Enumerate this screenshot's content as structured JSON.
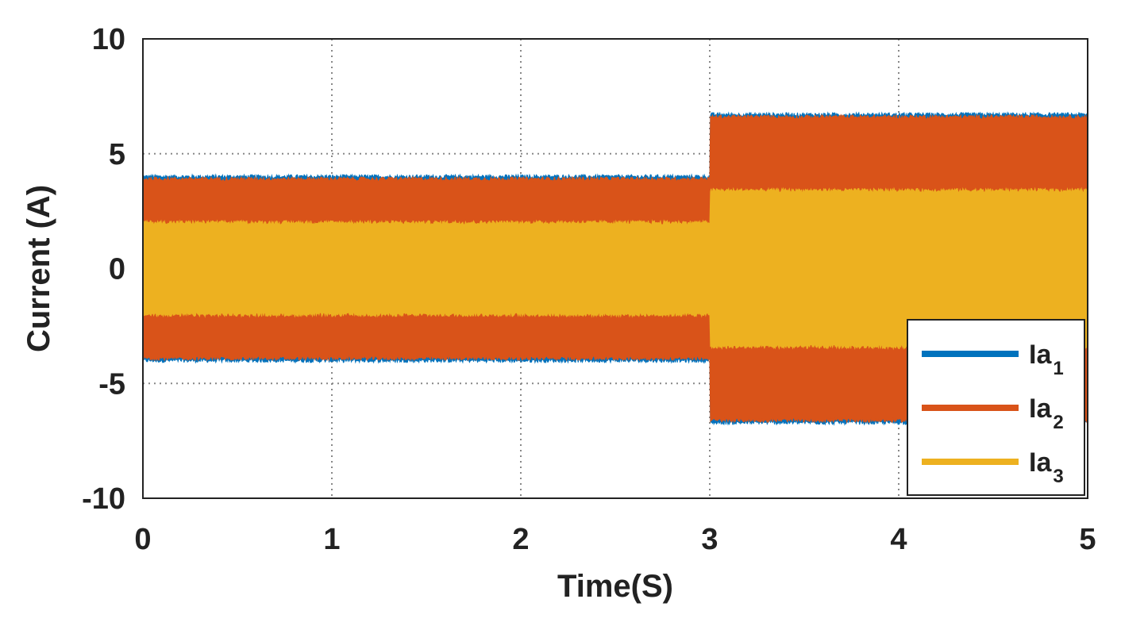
{
  "chart_data": {
    "type": "line",
    "title": "",
    "xlabel": "Time(S)",
    "ylabel": "Current (A)",
    "xlim": [
      0,
      5
    ],
    "ylim": [
      -10,
      10
    ],
    "xticks": [
      "0",
      "1",
      "2",
      "3",
      "4",
      "5"
    ],
    "yticks": [
      "10",
      "5",
      "0",
      "-5",
      "-10"
    ],
    "grid": true,
    "legend_position": "bottom-right",
    "series": [
      {
        "name": "Ia",
        "subscript": "1",
        "color": "#0072BD",
        "envelope": {
          "x": [
            0,
            3,
            3,
            5
          ],
          "amplitude": [
            4.0,
            4.0,
            6.7,
            6.7
          ]
        }
      },
      {
        "name": "Ia",
        "subscript": "2",
        "color": "#D95319",
        "envelope": {
          "x": [
            0,
            3,
            3,
            5
          ],
          "amplitude": [
            3.9,
            3.9,
            6.6,
            6.6
          ]
        }
      },
      {
        "name": "Ia",
        "subscript": "3",
        "color": "#EDB120",
        "envelope": {
          "x": [
            0,
            3,
            3,
            5
          ],
          "amplitude": [
            2.0,
            2.0,
            3.4,
            3.4
          ]
        }
      }
    ]
  }
}
